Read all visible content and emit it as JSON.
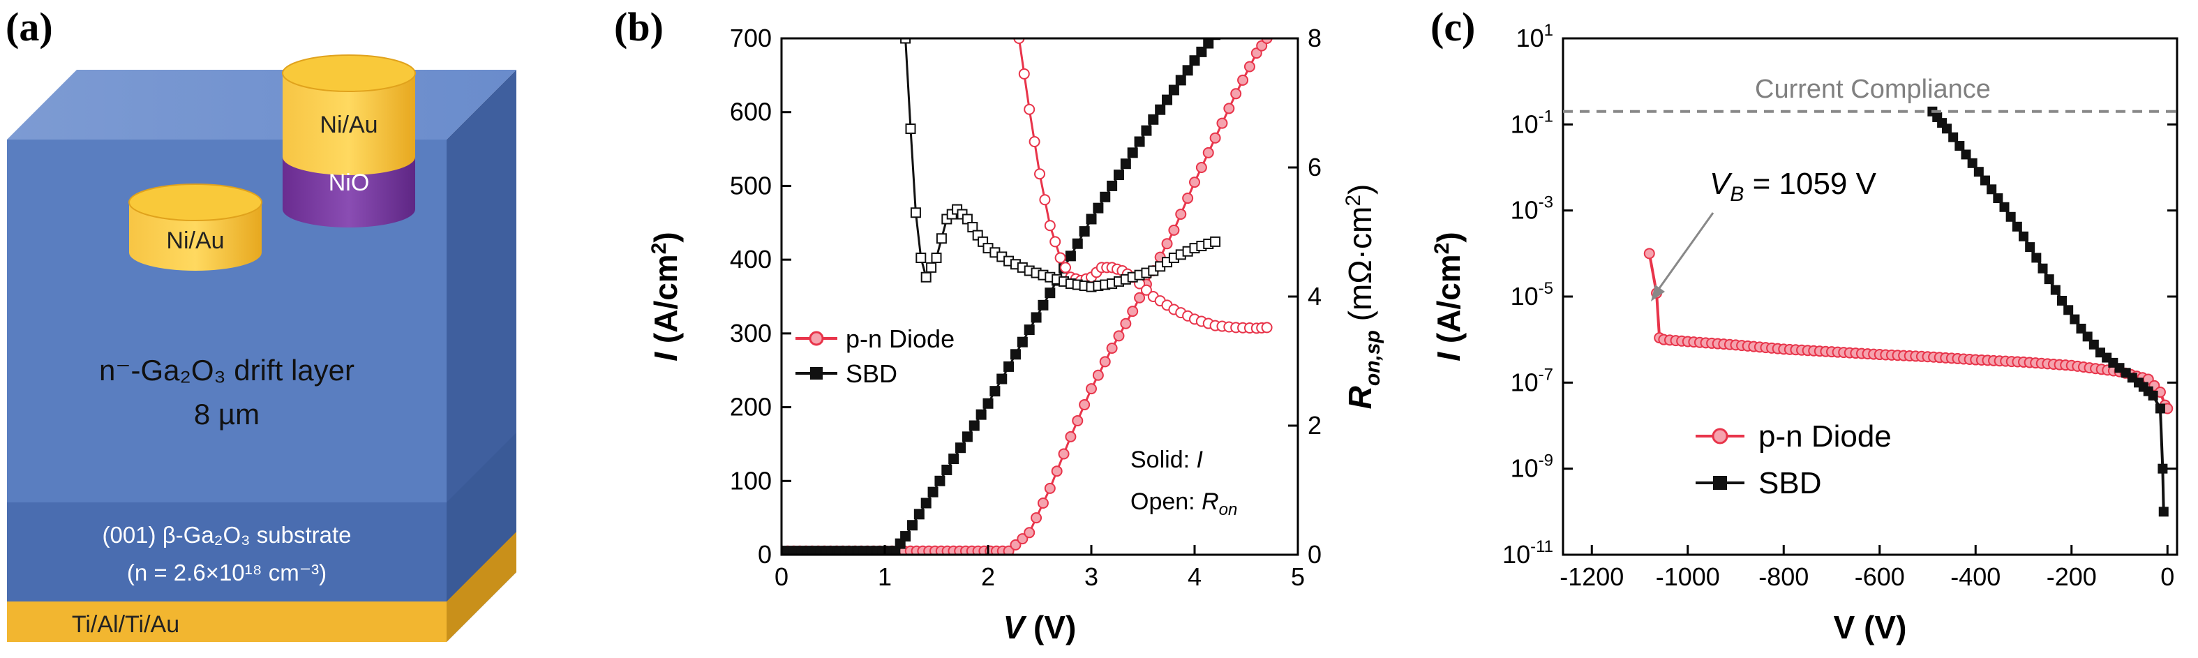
{
  "panel_a": {
    "label": "(a)",
    "contact_top": "Ni/Au",
    "contact_oxide": "NiO",
    "contact_left": "Ni/Au",
    "drift_line1": "n⁻-Ga₂O₃ drift layer",
    "drift_line2": "8 µm",
    "substrate_line1": "(001) β-Ga₂O₃ substrate",
    "substrate_line2": "(n = 2.6×10¹⁸ cm⁻³)",
    "backside": "Ti/Al/Ti/Au",
    "colors": {
      "drift": "#5b7fbf",
      "substrate": "#4c6fb1",
      "metal": "#f2b630",
      "nio": "#7b3fa0"
    }
  },
  "panel_b": {
    "label": "(b)",
    "legend": {
      "series1": "p-n Diode",
      "series2": "SBD"
    },
    "note_line1": "Solid: I",
    "note_line2": "Open: R_on"
  },
  "panel_c": {
    "label": "(c)",
    "compliance_label": "Current Compliance",
    "vb_label": "V_B = 1059 V",
    "legend": {
      "series1": "p-n Diode",
      "series2": "SBD"
    }
  },
  "chart_data": [
    {
      "type": "line",
      "panel": "b",
      "xlabel": "V (V)",
      "ylabel": "I (A/cm²)",
      "y2label": "R_on,sp (mΩ·cm²)",
      "xlim": [
        0,
        5
      ],
      "ylim": [
        0,
        700
      ],
      "y2lim": [
        0,
        8
      ],
      "xticks": [
        0,
        1,
        2,
        3,
        4,
        5
      ],
      "yticks": [
        0,
        100,
        200,
        300,
        400,
        500,
        600,
        700
      ],
      "y2ticks": [
        0,
        2,
        4,
        6,
        8
      ],
      "series": [
        {
          "name": "p-n Diode",
          "axis": "left",
          "style": "solid",
          "color": "#e8344a",
          "x": [
            0,
            2.2,
            2.4,
            2.6,
            2.8,
            3.0,
            3.2,
            3.4,
            3.6,
            3.8,
            4.0,
            4.2,
            4.4,
            4.6,
            4.7
          ],
          "y": [
            5,
            5,
            30,
            90,
            160,
            225,
            280,
            330,
            385,
            440,
            505,
            565,
            625,
            680,
            700
          ]
        },
        {
          "name": "SBD",
          "axis": "left",
          "style": "solid",
          "color": "#111111",
          "x": [
            0,
            1.1,
            1.2,
            1.4,
            1.6,
            1.8,
            2.0,
            2.2,
            2.4,
            2.6,
            2.8,
            3.0,
            3.2,
            3.4,
            3.6,
            3.8,
            4.0,
            4.2
          ],
          "y": [
            5,
            5,
            25,
            70,
            115,
            160,
            205,
            255,
            305,
            355,
            405,
            455,
            500,
            545,
            590,
            630,
            670,
            705
          ]
        },
        {
          "name": "p-n Diode",
          "axis": "right",
          "style": "open",
          "color": "#e8344a",
          "x": [
            2.3,
            2.4,
            2.5,
            2.6,
            2.7,
            2.8,
            2.9,
            3.0,
            3.1,
            3.2,
            3.3,
            3.4,
            3.6,
            3.8,
            4.0,
            4.2,
            4.4,
            4.6,
            4.7
          ],
          "y": [
            8.0,
            6.9,
            5.9,
            5.1,
            4.6,
            4.3,
            4.25,
            4.3,
            4.45,
            4.45,
            4.4,
            4.3,
            4.0,
            3.8,
            3.65,
            3.55,
            3.52,
            3.51,
            3.52
          ]
        },
        {
          "name": "SBD",
          "axis": "right",
          "style": "open",
          "color": "#111111",
          "x": [
            1.2,
            1.25,
            1.3,
            1.35,
            1.4,
            1.5,
            1.6,
            1.7,
            1.8,
            1.9,
            2.0,
            2.2,
            2.4,
            2.6,
            2.8,
            3.0,
            3.2,
            3.4,
            3.6,
            3.8,
            4.0,
            4.2
          ],
          "y": [
            8.0,
            6.6,
            5.3,
            4.6,
            4.3,
            4.6,
            5.2,
            5.35,
            5.2,
            4.95,
            4.75,
            4.55,
            4.4,
            4.3,
            4.2,
            4.15,
            4.2,
            4.3,
            4.4,
            4.6,
            4.75,
            4.85
          ]
        }
      ]
    },
    {
      "type": "line",
      "panel": "c",
      "xlabel": "V (V)",
      "ylabel": "I (A/cm²)",
      "yscale": "log",
      "xlim": [
        -1200,
        0
      ],
      "ylim": [
        1e-11,
        10
      ],
      "xticks": [
        -1200,
        -1000,
        -800,
        -600,
        -400,
        -200,
        0
      ],
      "ytick_exponents": [
        1,
        -1,
        -3,
        -5,
        -7,
        -9,
        -11
      ],
      "compliance_level": 0.2,
      "series": [
        {
          "name": "p-n Diode",
          "color": "#e8344a",
          "x": [
            -1080,
            -1065,
            -1059,
            -1050,
            -1000,
            -900,
            -800,
            -700,
            -600,
            -500,
            -400,
            -300,
            -200,
            -100,
            -40,
            -15,
            -5,
            0
          ],
          "y": [
            0.0001,
            1.2e-05,
            1.1e-06,
            1e-06,
            9e-07,
            7.5e-07,
            6e-07,
            5.2e-07,
            4.5e-07,
            4e-07,
            3.4e-07,
            3e-07,
            2.5e-07,
            1.8e-07,
            1.2e-07,
            6e-08,
            3e-08,
            2.5e-08
          ]
        },
        {
          "name": "SBD",
          "color": "#111111",
          "x": [
            -490,
            -460,
            -420,
            -380,
            -340,
            -300,
            -260,
            -220,
            -180,
            -140,
            -100,
            -60,
            -30,
            -15,
            -10,
            -8
          ],
          "y": [
            0.2,
            0.08,
            0.02,
            0.005,
            0.0012,
            0.00025,
            4.5e-05,
            8e-06,
            1.8e-06,
            5e-07,
            2.2e-07,
            1e-07,
            5e-08,
            2.5e-08,
            1e-09,
            1e-10
          ]
        }
      ]
    }
  ]
}
